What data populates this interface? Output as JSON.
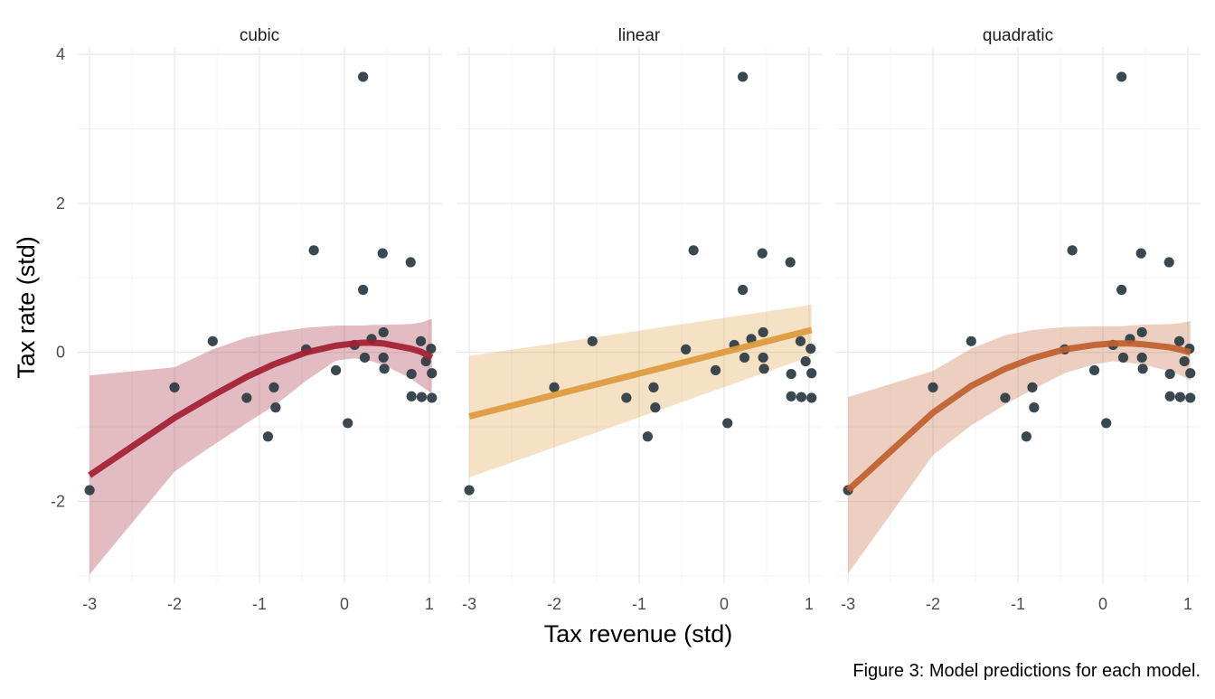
{
  "chart_data": {
    "type": "scatter",
    "xlabel": "Tax revenue (std)",
    "ylabel": "Tax rate (std)",
    "caption": "Figure 3: Model predictions for each model.",
    "xlim": [
      -3.15,
      1.15
    ],
    "ylim": [
      -3.1,
      4.1
    ],
    "x_ticks": [
      -3,
      -2,
      -1,
      0,
      1
    ],
    "x_tick_labels": [
      "-3",
      "-2",
      "-1",
      "0",
      "1"
    ],
    "y_ticks": [
      -2,
      0,
      2,
      4
    ],
    "y_tick_labels": [
      "-2",
      "0",
      "2",
      "4"
    ],
    "grid": true,
    "legend": "none",
    "point_color": "#2f3e46",
    "points": [
      {
        "x": -3.0,
        "y": -1.85
      },
      {
        "x": -2.0,
        "y": -0.47
      },
      {
        "x": -1.55,
        "y": 0.15
      },
      {
        "x": -1.15,
        "y": -0.61
      },
      {
        "x": -0.9,
        "y": -1.13
      },
      {
        "x": -0.83,
        "y": -0.47
      },
      {
        "x": -0.81,
        "y": -0.74
      },
      {
        "x": -0.45,
        "y": 0.04
      },
      {
        "x": -0.36,
        "y": 1.37
      },
      {
        "x": -0.1,
        "y": -0.24
      },
      {
        "x": 0.04,
        "y": -0.95
      },
      {
        "x": 0.12,
        "y": 0.1
      },
      {
        "x": 0.22,
        "y": 3.7
      },
      {
        "x": 0.22,
        "y": 0.84
      },
      {
        "x": 0.24,
        "y": -0.07
      },
      {
        "x": 0.32,
        "y": 0.18
      },
      {
        "x": 0.45,
        "y": 1.33
      },
      {
        "x": 0.46,
        "y": 0.27
      },
      {
        "x": 0.46,
        "y": -0.07
      },
      {
        "x": 0.47,
        "y": -0.22
      },
      {
        "x": 0.78,
        "y": 1.21
      },
      {
        "x": 0.79,
        "y": -0.29
      },
      {
        "x": 0.79,
        "y": -0.59
      },
      {
        "x": 0.9,
        "y": 0.15
      },
      {
        "x": 0.91,
        "y": -0.6
      },
      {
        "x": 0.96,
        "y": -0.12
      },
      {
        "x": 1.02,
        "y": 0.05
      },
      {
        "x": 1.03,
        "y": -0.28
      },
      {
        "x": 1.03,
        "y": -0.61
      }
    ],
    "panels": [
      {
        "label": "cubic",
        "color": "#a31f34",
        "fill": "#dbb8c0",
        "x": [
          -3.0,
          -2.0,
          -1.55,
          -1.15,
          -0.83,
          -0.45,
          -0.1,
          0.12,
          0.22,
          0.32,
          0.46,
          0.78,
          0.9,
          1.03
        ],
        "y": [
          -1.65,
          -0.88,
          -0.58,
          -0.33,
          -0.16,
          0.0,
          0.09,
          0.12,
          0.13,
          0.13,
          0.12,
          0.05,
          0.01,
          -0.07
        ],
        "lower": [
          -2.98,
          -1.6,
          -1.25,
          -0.95,
          -0.72,
          -0.38,
          -0.11,
          -0.08,
          -0.1,
          -0.12,
          -0.17,
          -0.35,
          -0.45,
          -0.55
        ],
        "upper": [
          -0.31,
          -0.2,
          0.04,
          0.2,
          0.27,
          0.33,
          0.36,
          0.36,
          0.36,
          0.37,
          0.37,
          0.38,
          0.4,
          0.45
        ]
      },
      {
        "label": "linear",
        "color": "#dd9a3c",
        "fill": "#f2dfc0",
        "x": [
          -3.0,
          1.03
        ],
        "y": [
          -0.86,
          0.3
        ],
        "lower": [
          -1.68,
          -0.05
        ],
        "upper": [
          -0.05,
          0.64
        ]
      },
      {
        "label": "quadratic",
        "color": "#bf602e",
        "fill": "#ead0c3",
        "x": [
          -3.0,
          -2.0,
          -1.55,
          -1.15,
          -0.83,
          -0.45,
          -0.1,
          0.12,
          0.22,
          0.32,
          0.46,
          0.78,
          0.9,
          1.03
        ],
        "y": [
          -1.85,
          -0.81,
          -0.45,
          -0.22,
          -0.08,
          0.04,
          0.1,
          0.12,
          0.12,
          0.12,
          0.11,
          0.07,
          0.04,
          0.0
        ],
        "lower": [
          -2.97,
          -1.38,
          -0.98,
          -0.7,
          -0.5,
          -0.28,
          -0.16,
          -0.12,
          -0.13,
          -0.14,
          -0.16,
          -0.25,
          -0.3,
          -0.38
        ],
        "upper": [
          -0.6,
          -0.25,
          0.05,
          0.23,
          0.3,
          0.34,
          0.35,
          0.35,
          0.35,
          0.36,
          0.37,
          0.38,
          0.39,
          0.42
        ]
      }
    ]
  }
}
